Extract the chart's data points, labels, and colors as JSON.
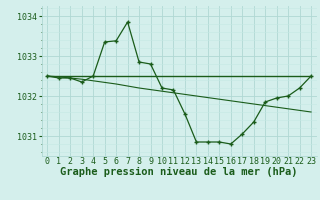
{
  "title": "Graphe pression niveau de la mer (hPa)",
  "x_labels": [
    "0",
    "1",
    "2",
    "3",
    "4",
    "5",
    "6",
    "7",
    "8",
    "9",
    "10",
    "11",
    "12",
    "13",
    "14",
    "15",
    "16",
    "17",
    "18",
    "19",
    "20",
    "21",
    "22",
    "23"
  ],
  "hours": [
    0,
    1,
    2,
    3,
    4,
    5,
    6,
    7,
    8,
    9,
    10,
    11,
    12,
    13,
    14,
    15,
    16,
    17,
    18,
    19,
    20,
    21,
    22,
    23
  ],
  "line_main_y": [
    1032.5,
    1032.45,
    1032.45,
    1032.35,
    1032.5,
    1033.35,
    1033.38,
    1033.85,
    1032.85,
    1032.8,
    1032.2,
    1032.15,
    1031.55,
    1030.85,
    1030.85,
    1030.85,
    1030.8,
    1031.05,
    1031.35,
    1031.85,
    1031.95,
    1032.0,
    1032.2,
    1032.5
  ],
  "line_trend_y": [
    1032.5,
    1032.48,
    1032.45,
    1032.42,
    1032.38,
    1032.34,
    1032.3,
    1032.25,
    1032.2,
    1032.16,
    1032.12,
    1032.08,
    1032.04,
    1032.0,
    1031.96,
    1031.92,
    1031.88,
    1031.84,
    1031.8,
    1031.76,
    1031.72,
    1031.68,
    1031.64,
    1031.6
  ],
  "line_flat_y": [
    1032.5,
    1032.5,
    1032.5,
    1032.5,
    1032.5,
    1032.5,
    1032.5,
    1032.5,
    1032.5,
    1032.5,
    1032.5,
    1032.5,
    1032.5,
    1032.5,
    1032.5,
    1032.5,
    1032.5,
    1032.5,
    1032.5,
    1032.5,
    1032.5,
    1032.5,
    1032.5,
    1032.5
  ],
  "line_color": "#1a5c1a",
  "bg_color": "#d4efec",
  "grid_color_major": "#b0d8d4",
  "grid_color_minor": "#c4e8e4",
  "ylim": [
    1030.5,
    1034.25
  ],
  "yticks": [
    1031,
    1032,
    1033,
    1034
  ],
  "title_fontsize": 7.5,
  "tick_fontsize": 6.0
}
